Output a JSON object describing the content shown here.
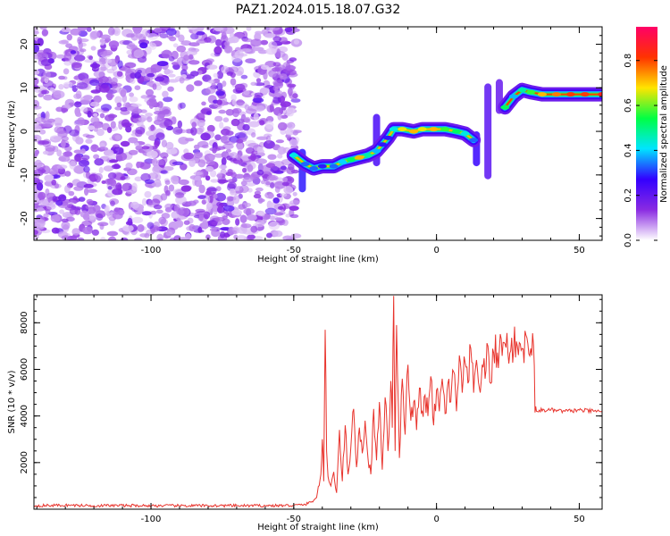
{
  "figure": {
    "title": "PAZ1.2024.015.18.07.G32"
  },
  "chart_data": [
    {
      "id": "spectrogram",
      "type": "heatmap",
      "xlabel": "Height of straight line (km)",
      "ylabel": "Frequency (Hz)",
      "xlim": [
        -141,
        58
      ],
      "ylim": [
        -25,
        24
      ],
      "x_ticks": [
        -100,
        -50,
        0,
        50
      ],
      "y_ticks": [
        -20,
        -10,
        0,
        10,
        20
      ],
      "colorbar": {
        "label": "Normalized spectral amplitude",
        "range": [
          0.0,
          0.95
        ],
        "ticks": [
          0.0,
          0.2,
          0.4,
          0.6,
          0.8
        ],
        "colormap": [
          "#ffffff",
          "#8a2be2",
          "#3300ff",
          "#00e5ff",
          "#00ff44",
          "#ffe400",
          "#ff3300",
          "#ff0066"
        ]
      },
      "noise_region": {
        "x": [
          -141,
          -49
        ],
        "y": [
          -25,
          24
        ],
        "level": 0.05
      },
      "ridge": [
        {
          "x": -50,
          "f": -5.5,
          "a": 0.45
        },
        {
          "x": -46,
          "f": -7.5,
          "a": 0.35
        },
        {
          "x": -43,
          "f": -8.5,
          "a": 0.35
        },
        {
          "x": -40,
          "f": -8.0,
          "a": 0.3
        },
        {
          "x": -36,
          "f": -8.0,
          "a": 0.35
        },
        {
          "x": -33,
          "f": -7.0,
          "a": 0.42
        },
        {
          "x": -30,
          "f": -6.5,
          "a": 0.55
        },
        {
          "x": -27,
          "f": -6.0,
          "a": 0.75
        },
        {
          "x": -24,
          "f": -5.5,
          "a": 0.5
        },
        {
          "x": -21,
          "f": -4.5,
          "a": 0.4
        },
        {
          "x": -19,
          "f": -3.0,
          "a": 0.3
        },
        {
          "x": -17,
          "f": -1.5,
          "a": 0.3
        },
        {
          "x": -15,
          "f": 0.5,
          "a": 0.45
        },
        {
          "x": -12,
          "f": 0.5,
          "a": 0.7
        },
        {
          "x": -8,
          "f": 0.0,
          "a": 0.75
        },
        {
          "x": -5,
          "f": 0.5,
          "a": 0.7
        },
        {
          "x": -1,
          "f": 0.5,
          "a": 0.75
        },
        {
          "x": 3,
          "f": 0.5,
          "a": 0.6
        },
        {
          "x": 7,
          "f": 0.0,
          "a": 0.55
        },
        {
          "x": 10,
          "f": -0.5,
          "a": 0.45
        },
        {
          "x": 13,
          "f": -2.0,
          "a": 0.35
        },
        {
          "x": 24,
          "f": 5.5,
          "a": 0.55
        },
        {
          "x": 27,
          "f": 8.0,
          "a": 0.4
        },
        {
          "x": 30,
          "f": 9.5,
          "a": 0.5
        },
        {
          "x": 33,
          "f": 9.0,
          "a": 0.6
        },
        {
          "x": 37,
          "f": 8.5,
          "a": 0.75
        },
        {
          "x": 42,
          "f": 8.5,
          "a": 0.8
        },
        {
          "x": 47,
          "f": 8.5,
          "a": 0.85
        },
        {
          "x": 52,
          "f": 8.5,
          "a": 0.85
        },
        {
          "x": 58,
          "f": 8.5,
          "a": 0.9
        }
      ],
      "streaks": [
        {
          "x": -47,
          "f0": -14,
          "f1": -4,
          "a": 0.3
        },
        {
          "x": -21,
          "f0": -8,
          "f1": 4,
          "a": 0.25
        },
        {
          "x": 14,
          "f0": -8,
          "f1": 0,
          "a": 0.28
        },
        {
          "x": 18,
          "f0": -11,
          "f1": 11,
          "a": 0.22
        },
        {
          "x": 22,
          "f0": 4,
          "f1": 12,
          "a": 0.2
        }
      ]
    },
    {
      "id": "snr",
      "type": "line",
      "xlabel": "Height of straight line (km)",
      "ylabel": "SNR (10 * v/v)",
      "xlim": [
        -141,
        58
      ],
      "ylim": [
        0,
        9200
      ],
      "x_ticks": [
        -100,
        -50,
        0,
        50
      ],
      "y_ticks": [
        2000,
        4000,
        6000,
        8000
      ],
      "color": "#e8332c",
      "x": [
        -141,
        -130,
        -120,
        -110,
        -100,
        -90,
        -80,
        -70,
        -60,
        -50,
        -46,
        -44,
        -42,
        -40.5,
        -40,
        -39.5,
        -39,
        -38.5,
        -38,
        -37,
        -36,
        -35,
        -34,
        -33,
        -32,
        -31,
        -30,
        -29,
        -28,
        -27,
        -26,
        -25,
        -24,
        -23,
        -22,
        -21,
        -20,
        -19,
        -18,
        -17,
        -16,
        -15.5,
        -15,
        -14.5,
        -14,
        -13,
        -12,
        -11,
        -10,
        -9,
        -8,
        -7,
        -6,
        -5,
        -4,
        -3,
        -2,
        -1,
        0,
        1,
        2,
        3,
        4,
        5,
        6,
        7,
        8,
        9,
        10,
        11,
        12,
        13,
        14,
        15,
        16,
        17,
        18,
        19,
        20,
        22,
        24,
        26,
        28,
        30,
        32,
        33,
        34,
        34.5,
        35,
        36,
        40,
        45,
        50,
        55,
        58
      ],
      "y": [
        150,
        170,
        150,
        160,
        150,
        150,
        150,
        150,
        150,
        160,
        200,
        300,
        500,
        1500,
        3000,
        1200,
        7700,
        2500,
        1400,
        1000,
        1600,
        700,
        3400,
        1200,
        3600,
        1500,
        2700,
        4300,
        1800,
        3500,
        2400,
        3800,
        2200,
        1500,
        4300,
        2100,
        4600,
        1700,
        4800,
        2500,
        5500,
        3500,
        9150,
        2500,
        7900,
        2200,
        5600,
        3200,
        6200,
        3800,
        4600,
        3400,
        5200,
        4200,
        4900,
        4000,
        5700,
        3600,
        5100,
        4200,
        5600,
        4100,
        5400,
        4600,
        5900,
        4200,
        6600,
        5000,
        6300,
        5400,
        6900,
        5000,
        6400,
        5200,
        6200,
        5600,
        7000,
        5400,
        6700,
        6800,
        7100,
        6800,
        7200,
        6900,
        7100,
        6900,
        7000,
        4150,
        4200,
        4250,
        4250,
        4200,
        4250,
        4200,
        4200
      ]
    }
  ]
}
